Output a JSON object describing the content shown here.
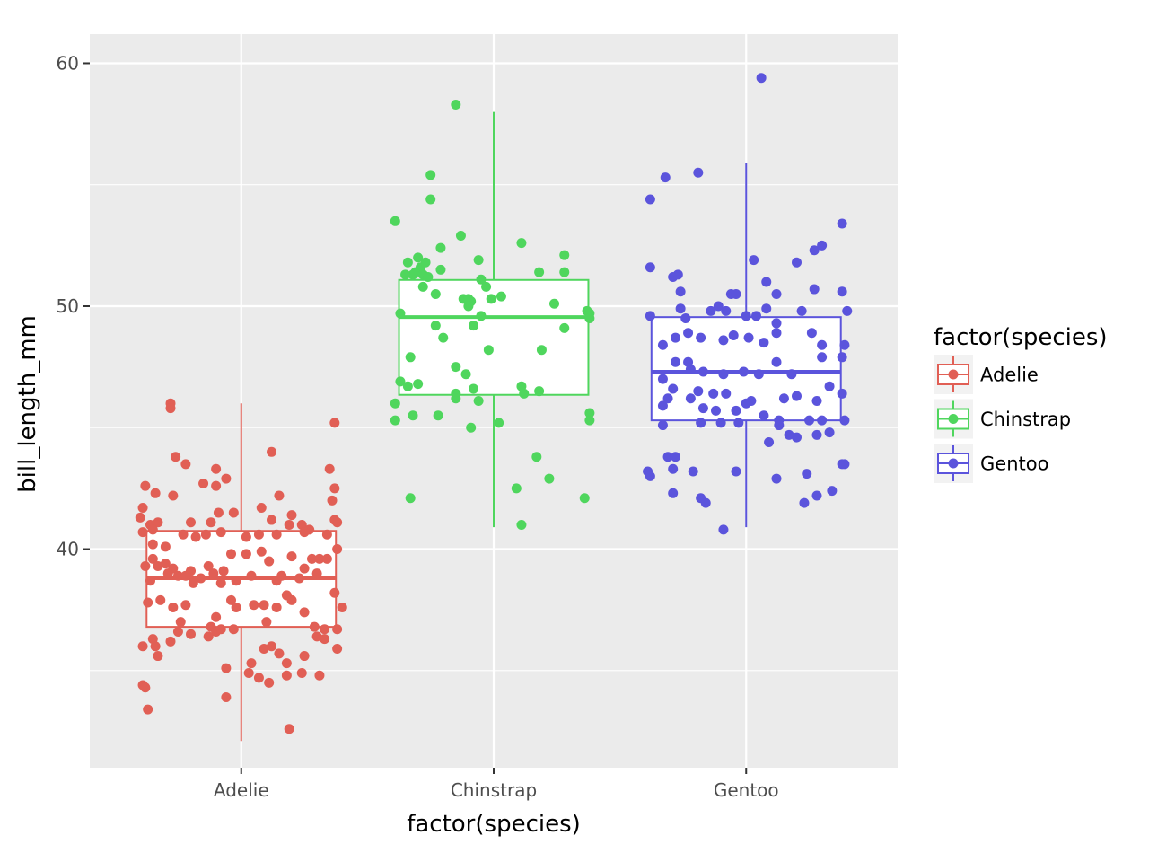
{
  "chart_data": {
    "type": "box",
    "overlay": "jitter-points",
    "xlabel": "factor(species)",
    "ylabel": "bill_length_mm",
    "ylim": [
      31,
      61.2
    ],
    "y_ticks": [
      40,
      50,
      60
    ],
    "categories": [
      "Adelie",
      "Chinstrap",
      "Gentoo"
    ],
    "legend": {
      "title": "factor(species)",
      "position": "right",
      "entries": [
        "Adelie",
        "Chinstrap",
        "Gentoo"
      ]
    },
    "colors": {
      "Adelie": "#e15f55",
      "Chinstrap": "#4fd65d",
      "Gentoo": "#5b54dc"
    },
    "grid": true,
    "series": [
      {
        "name": "Adelie",
        "box": {
          "q1": 36.8,
          "median": 38.8,
          "q3": 40.75,
          "whisker_low": 32.1,
          "whisker_high": 46.0
        },
        "points": [
          [
            -0.28,
            46.0
          ],
          [
            -0.28,
            45.8
          ],
          [
            -0.26,
            43.8
          ],
          [
            -0.22,
            43.5
          ],
          [
            -0.1,
            43.3
          ],
          [
            0.12,
            44.0
          ],
          [
            0.37,
            45.2
          ],
          [
            -0.38,
            42.6
          ],
          [
            -0.34,
            42.3
          ],
          [
            -0.27,
            42.2
          ],
          [
            -0.15,
            42.7
          ],
          [
            -0.1,
            42.6
          ],
          [
            -0.06,
            42.9
          ],
          [
            0.15,
            42.2
          ],
          [
            0.35,
            43.3
          ],
          [
            0.37,
            42.5
          ],
          [
            -0.39,
            41.7
          ],
          [
            -0.4,
            41.3
          ],
          [
            -0.36,
            41.0
          ],
          [
            -0.33,
            41.1
          ],
          [
            -0.35,
            40.8
          ],
          [
            -0.2,
            41.1
          ],
          [
            -0.12,
            41.1
          ],
          [
            -0.09,
            41.5
          ],
          [
            -0.03,
            41.5
          ],
          [
            0.08,
            41.7
          ],
          [
            0.12,
            41.2
          ],
          [
            0.19,
            41.0
          ],
          [
            0.24,
            41.0
          ],
          [
            0.2,
            41.4
          ],
          [
            0.27,
            40.8
          ],
          [
            0.36,
            42.0
          ],
          [
            0.37,
            41.2
          ],
          [
            0.38,
            41.1
          ],
          [
            -0.39,
            40.7
          ],
          [
            -0.35,
            40.2
          ],
          [
            -0.3,
            40.1
          ],
          [
            -0.23,
            40.6
          ],
          [
            -0.18,
            40.5
          ],
          [
            -0.14,
            40.6
          ],
          [
            -0.08,
            40.7
          ],
          [
            0.02,
            40.5
          ],
          [
            0.07,
            40.6
          ],
          [
            0.14,
            40.6
          ],
          [
            0.25,
            40.7
          ],
          [
            0.34,
            40.6
          ],
          [
            -0.35,
            39.6
          ],
          [
            -0.3,
            39.4
          ],
          [
            -0.27,
            39.2
          ],
          [
            -0.2,
            39.1
          ],
          [
            -0.16,
            38.8
          ],
          [
            -0.11,
            39.0
          ],
          [
            -0.07,
            39.1
          ],
          [
            -0.04,
            39.8
          ],
          [
            0.02,
            39.8
          ],
          [
            0.08,
            39.9
          ],
          [
            0.11,
            39.5
          ],
          [
            0.14,
            38.7
          ],
          [
            0.16,
            38.9
          ],
          [
            0.2,
            39.7
          ],
          [
            0.25,
            39.2
          ],
          [
            0.28,
            39.6
          ],
          [
            0.31,
            39.6
          ],
          [
            0.34,
            39.6
          ],
          [
            0.38,
            40.0
          ],
          [
            -0.38,
            39.3
          ],
          [
            -0.36,
            38.7
          ],
          [
            -0.33,
            39.3
          ],
          [
            -0.29,
            39.0
          ],
          [
            -0.25,
            38.9
          ],
          [
            -0.22,
            38.9
          ],
          [
            -0.19,
            38.6
          ],
          [
            -0.13,
            39.3
          ],
          [
            -0.08,
            38.6
          ],
          [
            -0.02,
            38.7
          ],
          [
            0.04,
            38.9
          ],
          [
            0.09,
            37.7
          ],
          [
            0.18,
            38.1
          ],
          [
            0.23,
            38.8
          ],
          [
            0.3,
            39.0
          ],
          [
            0.37,
            38.2
          ],
          [
            -0.37,
            37.8
          ],
          [
            -0.32,
            37.9
          ],
          [
            -0.27,
            37.6
          ],
          [
            -0.24,
            37.0
          ],
          [
            -0.22,
            37.7
          ],
          [
            -0.12,
            36.8
          ],
          [
            -0.1,
            37.2
          ],
          [
            -0.04,
            37.9
          ],
          [
            -0.02,
            37.6
          ],
          [
            0.05,
            37.7
          ],
          [
            0.1,
            37.0
          ],
          [
            0.14,
            37.6
          ],
          [
            0.2,
            37.9
          ],
          [
            0.25,
            37.4
          ],
          [
            0.29,
            36.8
          ],
          [
            0.33,
            36.7
          ],
          [
            0.38,
            36.7
          ],
          [
            0.4,
            37.6
          ],
          [
            -0.35,
            36.3
          ],
          [
            -0.34,
            36.0
          ],
          [
            -0.25,
            36.6
          ],
          [
            -0.2,
            36.5
          ],
          [
            -0.13,
            36.4
          ],
          [
            -0.1,
            36.6
          ],
          [
            -0.08,
            36.7
          ],
          [
            -0.03,
            36.7
          ],
          [
            0.09,
            35.9
          ],
          [
            0.12,
            36.0
          ],
          [
            0.15,
            35.7
          ],
          [
            0.18,
            35.3
          ],
          [
            0.25,
            35.6
          ],
          [
            0.3,
            36.4
          ],
          [
            0.33,
            36.3
          ],
          [
            0.38,
            35.9
          ],
          [
            -0.39,
            36.0
          ],
          [
            -0.33,
            35.6
          ],
          [
            -0.28,
            36.2
          ],
          [
            -0.06,
            35.1
          ],
          [
            0.03,
            34.9
          ],
          [
            0.04,
            35.3
          ],
          [
            0.07,
            34.7
          ],
          [
            0.11,
            34.5
          ],
          [
            0.18,
            34.8
          ],
          [
            0.24,
            34.9
          ],
          [
            0.31,
            34.8
          ],
          [
            -0.39,
            34.4
          ],
          [
            -0.38,
            34.3
          ],
          [
            -0.37,
            33.4
          ],
          [
            -0.06,
            33.9
          ],
          [
            0.19,
            32.6
          ]
        ]
      },
      {
        "name": "Chinstrap",
        "box": {
          "q1": 46.35,
          "median": 49.55,
          "q3": 51.08,
          "whisker_low": 40.9,
          "whisker_high": 58.0
        },
        "points": [
          [
            -0.15,
            58.3
          ],
          [
            -0.25,
            55.4
          ],
          [
            -0.25,
            54.4
          ],
          [
            -0.39,
            53.5
          ],
          [
            -0.13,
            52.9
          ],
          [
            0.11,
            52.6
          ],
          [
            -0.21,
            52.4
          ],
          [
            0.28,
            52.1
          ],
          [
            -0.3,
            52.0
          ],
          [
            -0.34,
            51.8
          ],
          [
            -0.29,
            51.6
          ],
          [
            -0.27,
            51.8
          ],
          [
            -0.32,
            51.3
          ],
          [
            -0.35,
            51.3
          ],
          [
            -0.31,
            51.4
          ],
          [
            -0.28,
            51.3
          ],
          [
            -0.26,
            51.2
          ],
          [
            -0.21,
            51.5
          ],
          [
            -0.06,
            51.9
          ],
          [
            0.18,
            51.4
          ],
          [
            0.28,
            51.4
          ],
          [
            -0.28,
            50.8
          ],
          [
            -0.23,
            50.5
          ],
          [
            -0.03,
            50.8
          ],
          [
            0.03,
            50.4
          ],
          [
            0.24,
            50.1
          ],
          [
            -0.12,
            50.3
          ],
          [
            -0.09,
            50.2
          ],
          [
            -0.1,
            50.3
          ],
          [
            -0.1,
            50.0
          ],
          [
            -0.05,
            51.1
          ],
          [
            -0.01,
            50.3
          ],
          [
            0.37,
            49.8
          ],
          [
            -0.37,
            49.7
          ],
          [
            -0.08,
            49.2
          ],
          [
            -0.23,
            49.2
          ],
          [
            -0.2,
            48.7
          ],
          [
            -0.05,
            49.6
          ],
          [
            0.28,
            49.1
          ],
          [
            0.38,
            49.7
          ],
          [
            0.38,
            49.5
          ],
          [
            -0.33,
            47.9
          ],
          [
            -0.02,
            48.2
          ],
          [
            0.19,
            48.2
          ],
          [
            -0.15,
            47.5
          ],
          [
            -0.11,
            47.2
          ],
          [
            -0.37,
            46.9
          ],
          [
            -0.34,
            46.7
          ],
          [
            -0.3,
            46.8
          ],
          [
            -0.15,
            46.4
          ],
          [
            -0.15,
            46.2
          ],
          [
            -0.08,
            46.6
          ],
          [
            -0.06,
            46.1
          ],
          [
            0.11,
            46.7
          ],
          [
            0.12,
            46.4
          ],
          [
            0.18,
            46.5
          ],
          [
            -0.39,
            46.0
          ],
          [
            -0.32,
            45.5
          ],
          [
            -0.22,
            45.5
          ],
          [
            -0.09,
            45.0
          ],
          [
            0.02,
            45.2
          ],
          [
            0.38,
            45.6
          ],
          [
            0.38,
            45.3
          ],
          [
            -0.39,
            45.3
          ],
          [
            0.17,
            43.8
          ],
          [
            0.22,
            42.9
          ],
          [
            0.09,
            42.5
          ],
          [
            -0.33,
            42.1
          ],
          [
            0.36,
            42.1
          ],
          [
            0.11,
            41.0
          ]
        ]
      },
      {
        "name": "Gentoo",
        "box": {
          "q1": 45.3,
          "median": 47.3,
          "q3": 49.55,
          "whisker_low": 40.9,
          "whisker_high": 55.9
        },
        "points": [
          [
            0.06,
            59.4
          ],
          [
            -0.19,
            55.5
          ],
          [
            -0.32,
            55.3
          ],
          [
            -0.38,
            54.4
          ],
          [
            -0.38,
            51.6
          ],
          [
            -0.29,
            51.2
          ],
          [
            -0.27,
            51.3
          ],
          [
            0.03,
            51.9
          ],
          [
            0.08,
            51.0
          ],
          [
            0.2,
            51.8
          ],
          [
            0.27,
            52.3
          ],
          [
            0.3,
            52.5
          ],
          [
            0.38,
            53.4
          ],
          [
            -0.26,
            50.6
          ],
          [
            -0.11,
            50.0
          ],
          [
            -0.06,
            50.5
          ],
          [
            -0.04,
            50.5
          ],
          [
            0.12,
            50.5
          ],
          [
            0.27,
            50.7
          ],
          [
            0.38,
            50.6
          ],
          [
            -0.38,
            49.6
          ],
          [
            -0.26,
            49.9
          ],
          [
            -0.24,
            49.5
          ],
          [
            -0.14,
            49.8
          ],
          [
            -0.08,
            49.8
          ],
          [
            0.0,
            49.6
          ],
          [
            0.04,
            49.6
          ],
          [
            0.08,
            49.9
          ],
          [
            0.12,
            49.3
          ],
          [
            0.22,
            49.8
          ],
          [
            0.4,
            49.8
          ],
          [
            -0.33,
            48.4
          ],
          [
            -0.28,
            48.7
          ],
          [
            -0.23,
            48.9
          ],
          [
            -0.18,
            48.7
          ],
          [
            -0.09,
            48.6
          ],
          [
            -0.05,
            48.8
          ],
          [
            0.01,
            48.7
          ],
          [
            0.07,
            48.5
          ],
          [
            0.12,
            48.9
          ],
          [
            0.26,
            48.9
          ],
          [
            0.3,
            48.4
          ],
          [
            0.39,
            48.4
          ],
          [
            -0.28,
            47.7
          ],
          [
            -0.23,
            47.7
          ],
          [
            -0.22,
            47.4
          ],
          [
            -0.17,
            47.3
          ],
          [
            -0.09,
            47.2
          ],
          [
            -0.01,
            47.3
          ],
          [
            0.05,
            47.2
          ],
          [
            0.12,
            47.7
          ],
          [
            0.18,
            47.2
          ],
          [
            0.3,
            47.9
          ],
          [
            0.38,
            47.9
          ],
          [
            -0.33,
            47.0
          ],
          [
            -0.29,
            46.6
          ],
          [
            -0.19,
            46.5
          ],
          [
            -0.13,
            46.4
          ],
          [
            -0.08,
            46.4
          ],
          [
            0.02,
            46.1
          ],
          [
            0.15,
            46.2
          ],
          [
            0.2,
            46.3
          ],
          [
            0.33,
            46.7
          ],
          [
            -0.33,
            45.9
          ],
          [
            -0.31,
            46.2
          ],
          [
            -0.22,
            46.2
          ],
          [
            -0.17,
            45.8
          ],
          [
            -0.12,
            45.7
          ],
          [
            -0.04,
            45.7
          ],
          [
            0.0,
            46.0
          ],
          [
            0.07,
            45.5
          ],
          [
            0.13,
            45.3
          ],
          [
            0.25,
            45.3
          ],
          [
            0.28,
            46.1
          ],
          [
            0.38,
            46.4
          ],
          [
            -0.33,
            45.1
          ],
          [
            -0.18,
            45.2
          ],
          [
            -0.1,
            45.2
          ],
          [
            -0.03,
            45.2
          ],
          [
            0.13,
            45.1
          ],
          [
            0.3,
            45.3
          ],
          [
            0.39,
            45.3
          ],
          [
            -0.31,
            43.8
          ],
          [
            -0.28,
            43.8
          ],
          [
            -0.29,
            43.3
          ],
          [
            -0.21,
            43.2
          ],
          [
            -0.04,
            43.2
          ],
          [
            0.09,
            44.4
          ],
          [
            0.17,
            44.7
          ],
          [
            0.2,
            44.6
          ],
          [
            0.28,
            44.7
          ],
          [
            0.33,
            44.8
          ],
          [
            -0.39,
            43.2
          ],
          [
            -0.38,
            43.0
          ],
          [
            0.12,
            42.9
          ],
          [
            0.24,
            43.1
          ],
          [
            0.38,
            43.5
          ],
          [
            0.39,
            43.5
          ],
          [
            -0.29,
            42.3
          ],
          [
            -0.18,
            42.1
          ],
          [
            0.28,
            42.2
          ],
          [
            -0.16,
            41.9
          ],
          [
            -0.09,
            40.8
          ],
          [
            0.23,
            41.9
          ],
          [
            0.34,
            42.4
          ]
        ]
      }
    ]
  }
}
